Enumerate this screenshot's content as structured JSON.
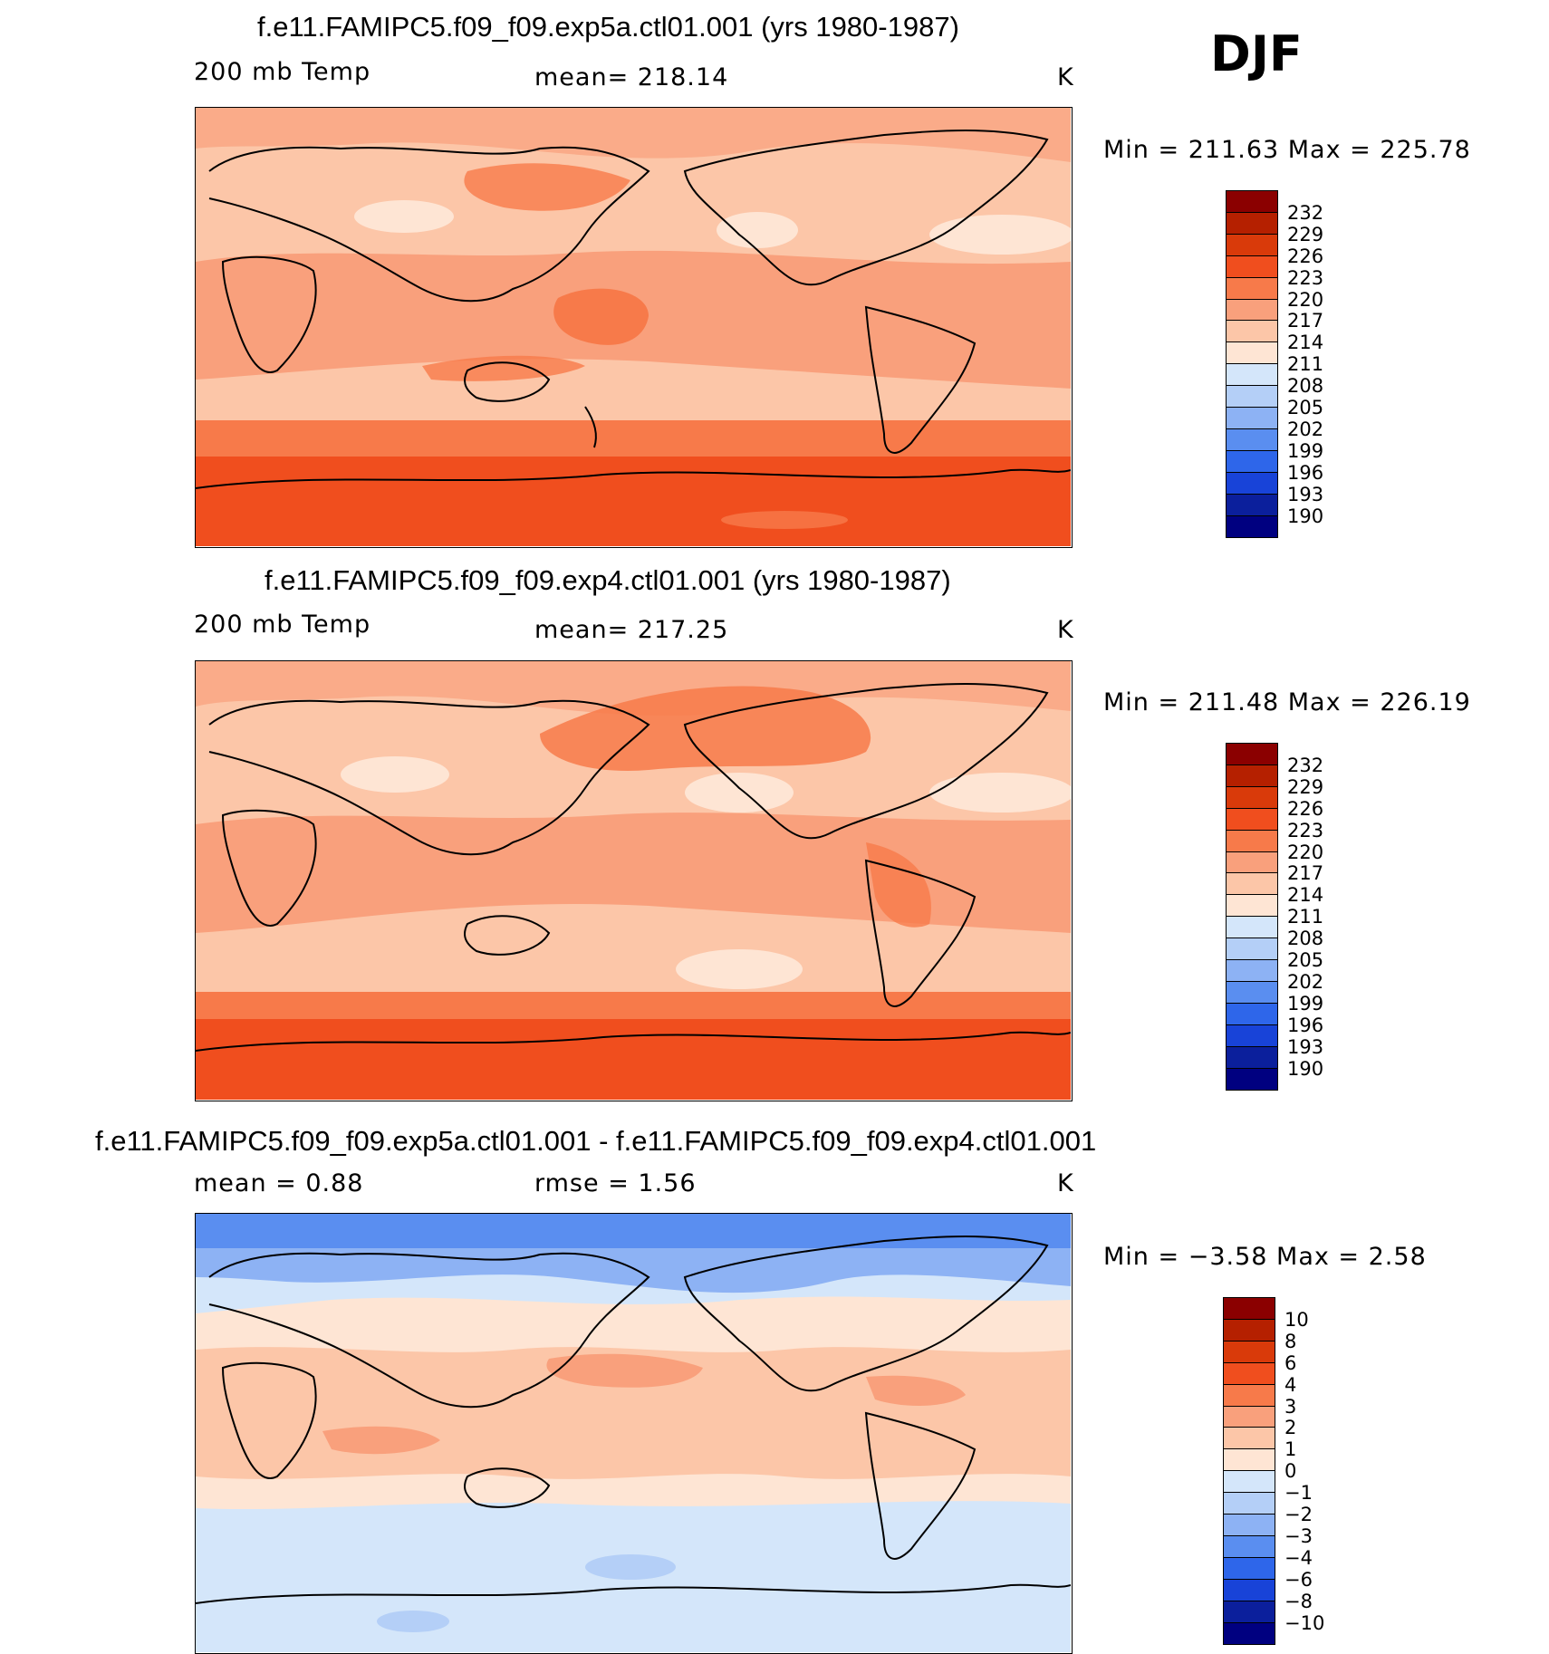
{
  "header": {
    "season": "DJF"
  },
  "panels": [
    {
      "title": "f.e11.FAMIPC5.f09_f09.exp5a.ctl01.001 (yrs 1980-1987)",
      "left_label": "200 mb Temp",
      "center_label": "mean=  218.14",
      "units": "K",
      "minmax": "Min  =  211.63  Max  =  225.78"
    },
    {
      "title": "f.e11.FAMIPC5.f09_f09.exp4.ctl01.001 (yrs 1980-1987)",
      "left_label": "200 mb Temp",
      "center_label": "mean=  217.25",
      "units": "K",
      "minmax": "Min  =  211.48  Max  =  226.19"
    },
    {
      "title": "f.e11.FAMIPC5.f09_f09.exp5a.ctl01.001 - f.e11.FAMIPC5.f09_f09.exp4.ctl01.001",
      "left_label": "mean  =     0.88",
      "center_label": "rmse  =     1.56",
      "units": "K",
      "minmax": "Min  =    −3.58  Max  =     2.58"
    }
  ],
  "colorbars": {
    "temp": {
      "labels": [
        "232",
        "229",
        "226",
        "223",
        "220",
        "217",
        "214",
        "211",
        "208",
        "205",
        "202",
        "199",
        "196",
        "193",
        "190"
      ],
      "colors": [
        "#8b0000",
        "#b52000",
        "#d93a0a",
        "#f04e1e",
        "#f77a4a",
        "#f9a07c",
        "#fcc6a8",
        "#fee5d4",
        "#d4e6fa",
        "#b4cff7",
        "#8db2f4",
        "#5a8ef0",
        "#2e66ea",
        "#1843d8",
        "#0b1f9c",
        "#000080"
      ]
    },
    "diff": {
      "labels": [
        "10",
        "8",
        "6",
        "4",
        "3",
        "2",
        "1",
        "0",
        "−1",
        "−2",
        "−3",
        "−4",
        "−6",
        "−8",
        "−10"
      ],
      "colors": [
        "#8b0000",
        "#b52000",
        "#d93a0a",
        "#f04e1e",
        "#f77a4a",
        "#f9a07c",
        "#fcc6a8",
        "#fee5d4",
        "#d4e6fa",
        "#b4cff7",
        "#8db2f4",
        "#5a8ef0",
        "#2e66ea",
        "#1843d8",
        "#0b1f9c",
        "#000080"
      ]
    }
  }
}
